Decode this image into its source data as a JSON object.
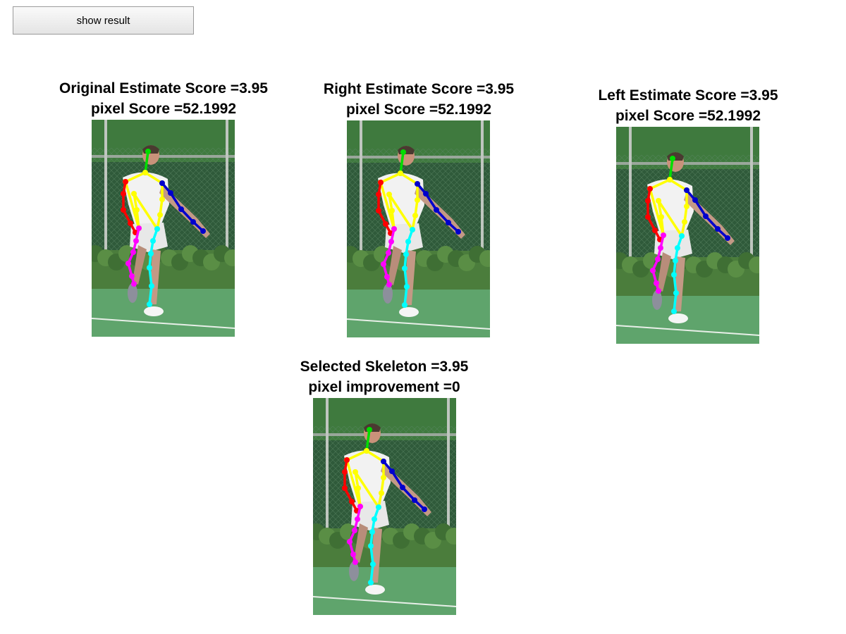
{
  "toolbar": {
    "show_result_label": "show result"
  },
  "panels": {
    "original": {
      "line1": "Original Estimate Score =3.95",
      "line2": "pixel Score =52.1992"
    },
    "right": {
      "line1": "Right Estimate Score =3.95",
      "line2": "pixel Score =52.1992"
    },
    "left": {
      "line1": "Left Estimate Score =3.95",
      "line2": "pixel Score =52.1992"
    },
    "selected": {
      "line1": "Selected Skeleton =3.95",
      "line2": "pixel improvement =0"
    }
  },
  "colors": {
    "head": "#00dd00",
    "right_arm": "#ff0000",
    "left_arm": "#0000cc",
    "torso": "#ffff00",
    "right_leg": "#ff00ff",
    "left_leg": "#00ffff"
  }
}
